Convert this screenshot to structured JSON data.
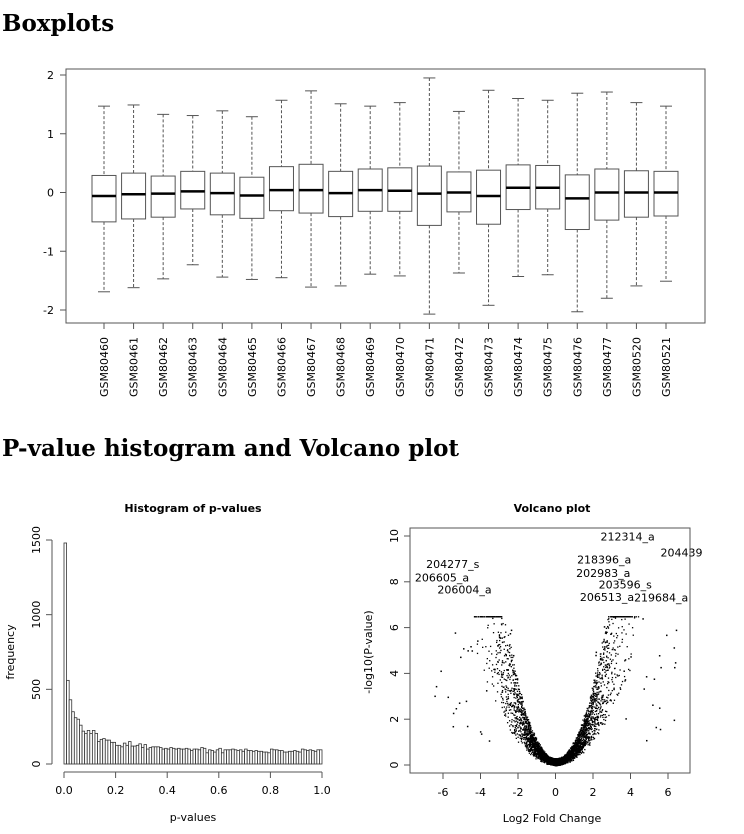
{
  "headings": {
    "boxplots": "Boxplots",
    "pvalue_volcano": "P-value histogram and Volcano plot"
  },
  "chart_data": [
    {
      "type": "boxplot",
      "title": "",
      "ylim": [
        -2.2,
        2.1
      ],
      "yticks": [
        -2,
        -1,
        0,
        1,
        2
      ],
      "grid": false,
      "categories": [
        "GSM80460",
        "GSM80461",
        "GSM80462",
        "GSM80463",
        "GSM80464",
        "GSM80465",
        "GSM80466",
        "GSM80467",
        "GSM80468",
        "GSM80469",
        "GSM80470",
        "GSM80471",
        "GSM80472",
        "GSM80473",
        "GSM80474",
        "GSM80475",
        "GSM80476",
        "GSM80477",
        "GSM80520",
        "GSM80521"
      ],
      "boxes": [
        {
          "upper_whisker": 1.47,
          "q3": 0.29,
          "median": -0.06,
          "q1": -0.5,
          "lower_whisker": -1.69
        },
        {
          "upper_whisker": 1.49,
          "q3": 0.33,
          "median": -0.03,
          "q1": -0.45,
          "lower_whisker": -1.62
        },
        {
          "upper_whisker": 1.33,
          "q3": 0.28,
          "median": -0.02,
          "q1": -0.42,
          "lower_whisker": -1.47
        },
        {
          "upper_whisker": 1.31,
          "q3": 0.36,
          "median": 0.02,
          "q1": -0.28,
          "lower_whisker": -1.23
        },
        {
          "upper_whisker": 1.39,
          "q3": 0.33,
          "median": -0.01,
          "q1": -0.38,
          "lower_whisker": -1.44
        },
        {
          "upper_whisker": 1.29,
          "q3": 0.26,
          "median": -0.05,
          "q1": -0.44,
          "lower_whisker": -1.48
        },
        {
          "upper_whisker": 1.57,
          "q3": 0.44,
          "median": 0.04,
          "q1": -0.31,
          "lower_whisker": -1.45
        },
        {
          "upper_whisker": 1.73,
          "q3": 0.48,
          "median": 0.04,
          "q1": -0.35,
          "lower_whisker": -1.61
        },
        {
          "upper_whisker": 1.51,
          "q3": 0.36,
          "median": -0.01,
          "q1": -0.41,
          "lower_whisker": -1.59
        },
        {
          "upper_whisker": 1.47,
          "q3": 0.4,
          "median": 0.04,
          "q1": -0.32,
          "lower_whisker": -1.39
        },
        {
          "upper_whisker": 1.53,
          "q3": 0.42,
          "median": 0.03,
          "q1": -0.32,
          "lower_whisker": -1.42
        },
        {
          "upper_whisker": 1.95,
          "q3": 0.45,
          "median": -0.02,
          "q1": -0.56,
          "lower_whisker": -2.07
        },
        {
          "upper_whisker": 1.38,
          "q3": 0.35,
          "median": 0.0,
          "q1": -0.33,
          "lower_whisker": -1.37
        },
        {
          "upper_whisker": 1.74,
          "q3": 0.38,
          "median": -0.06,
          "q1": -0.54,
          "lower_whisker": -1.92
        },
        {
          "upper_whisker": 1.6,
          "q3": 0.47,
          "median": 0.08,
          "q1": -0.29,
          "lower_whisker": -1.43
        },
        {
          "upper_whisker": 1.57,
          "q3": 0.46,
          "median": 0.08,
          "q1": -0.28,
          "lower_whisker": -1.4
        },
        {
          "upper_whisker": 1.69,
          "q3": 0.3,
          "median": -0.1,
          "q1": -0.63,
          "lower_whisker": -2.03
        },
        {
          "upper_whisker": 1.71,
          "q3": 0.4,
          "median": 0.0,
          "q1": -0.47,
          "lower_whisker": -1.8
        },
        {
          "upper_whisker": 1.53,
          "q3": 0.37,
          "median": 0.0,
          "q1": -0.42,
          "lower_whisker": -1.59
        },
        {
          "upper_whisker": 1.47,
          "q3": 0.36,
          "median": 0.0,
          "q1": -0.4,
          "lower_whisker": -1.51
        }
      ]
    },
    {
      "type": "bar",
      "title": "Histogram of p-values",
      "xlabel": "p-values",
      "ylabel": "frequency",
      "xlim": [
        0,
        1
      ],
      "ylim": [
        0,
        1500
      ],
      "xticks": [
        "0.0",
        "0.2",
        "0.4",
        "0.6",
        "0.8",
        "1.0"
      ],
      "yticks": [
        "0",
        "500",
        "1000",
        "1500"
      ],
      "bin_width": 0.01,
      "values": [
        1480,
        560,
        430,
        350,
        310,
        300,
        260,
        220,
        205,
        225,
        205,
        225,
        205,
        150,
        165,
        170,
        160,
        160,
        145,
        145,
        125,
        125,
        115,
        140,
        125,
        150,
        120,
        120,
        125,
        135,
        110,
        130,
        100,
        110,
        115,
        115,
        115,
        110,
        100,
        105,
        100,
        110,
        105,
        100,
        105,
        100,
        100,
        105,
        100,
        90,
        100,
        100,
        95,
        110,
        105,
        75,
        95,
        90,
        80,
        95,
        105,
        75,
        95,
        95,
        95,
        100,
        95,
        90,
        95,
        85,
        100,
        90,
        90,
        85,
        90,
        85,
        85,
        80,
        80,
        75,
        100,
        95,
        95,
        90,
        90,
        80,
        80,
        85,
        85,
        90,
        85,
        80,
        100,
        95,
        90,
        95,
        90,
        85,
        95,
        95
      ]
    },
    {
      "type": "scatter",
      "title": "Volcano plot",
      "xlabel": "Log2 Fold Change",
      "ylabel": "-log10(P-value)",
      "xlim": [
        -7.8,
        7.2
      ],
      "ylim": [
        -0.4,
        10.3
      ],
      "xticks": [
        "-6",
        "-4",
        "-2",
        "0",
        "2",
        "4",
        "6"
      ],
      "yticks": [
        "0",
        "2",
        "4",
        "6",
        "8",
        "10"
      ],
      "label_color": "#0000ff",
      "point_color": "#000000",
      "labeled_points": [
        {
          "label": "212314_a",
          "x": 2.4,
          "y": 9.8
        },
        {
          "label": "204439",
          "x": 5.6,
          "y": 9.1
        },
        {
          "label": "204277_s",
          "x": -6.9,
          "y": 8.6
        },
        {
          "label": "206605_a",
          "x": -7.5,
          "y": 8.4
        },
        {
          "label": "218396_a",
          "x": 1.15,
          "y": 8.8
        },
        {
          "label": "202983_a",
          "x": 1.1,
          "y": 8.3
        },
        {
          "label": "203596_s",
          "x": 2.3,
          "y": 7.8
        },
        {
          "label": "219684_a",
          "x": 2.75,
          "y": 7.4
        },
        {
          "label": "206513_a",
          "x": 1.3,
          "y": 7.25
        },
        {
          "label": "206004_a",
          "x": -6.3,
          "y": 7.5
        }
      ]
    }
  ]
}
